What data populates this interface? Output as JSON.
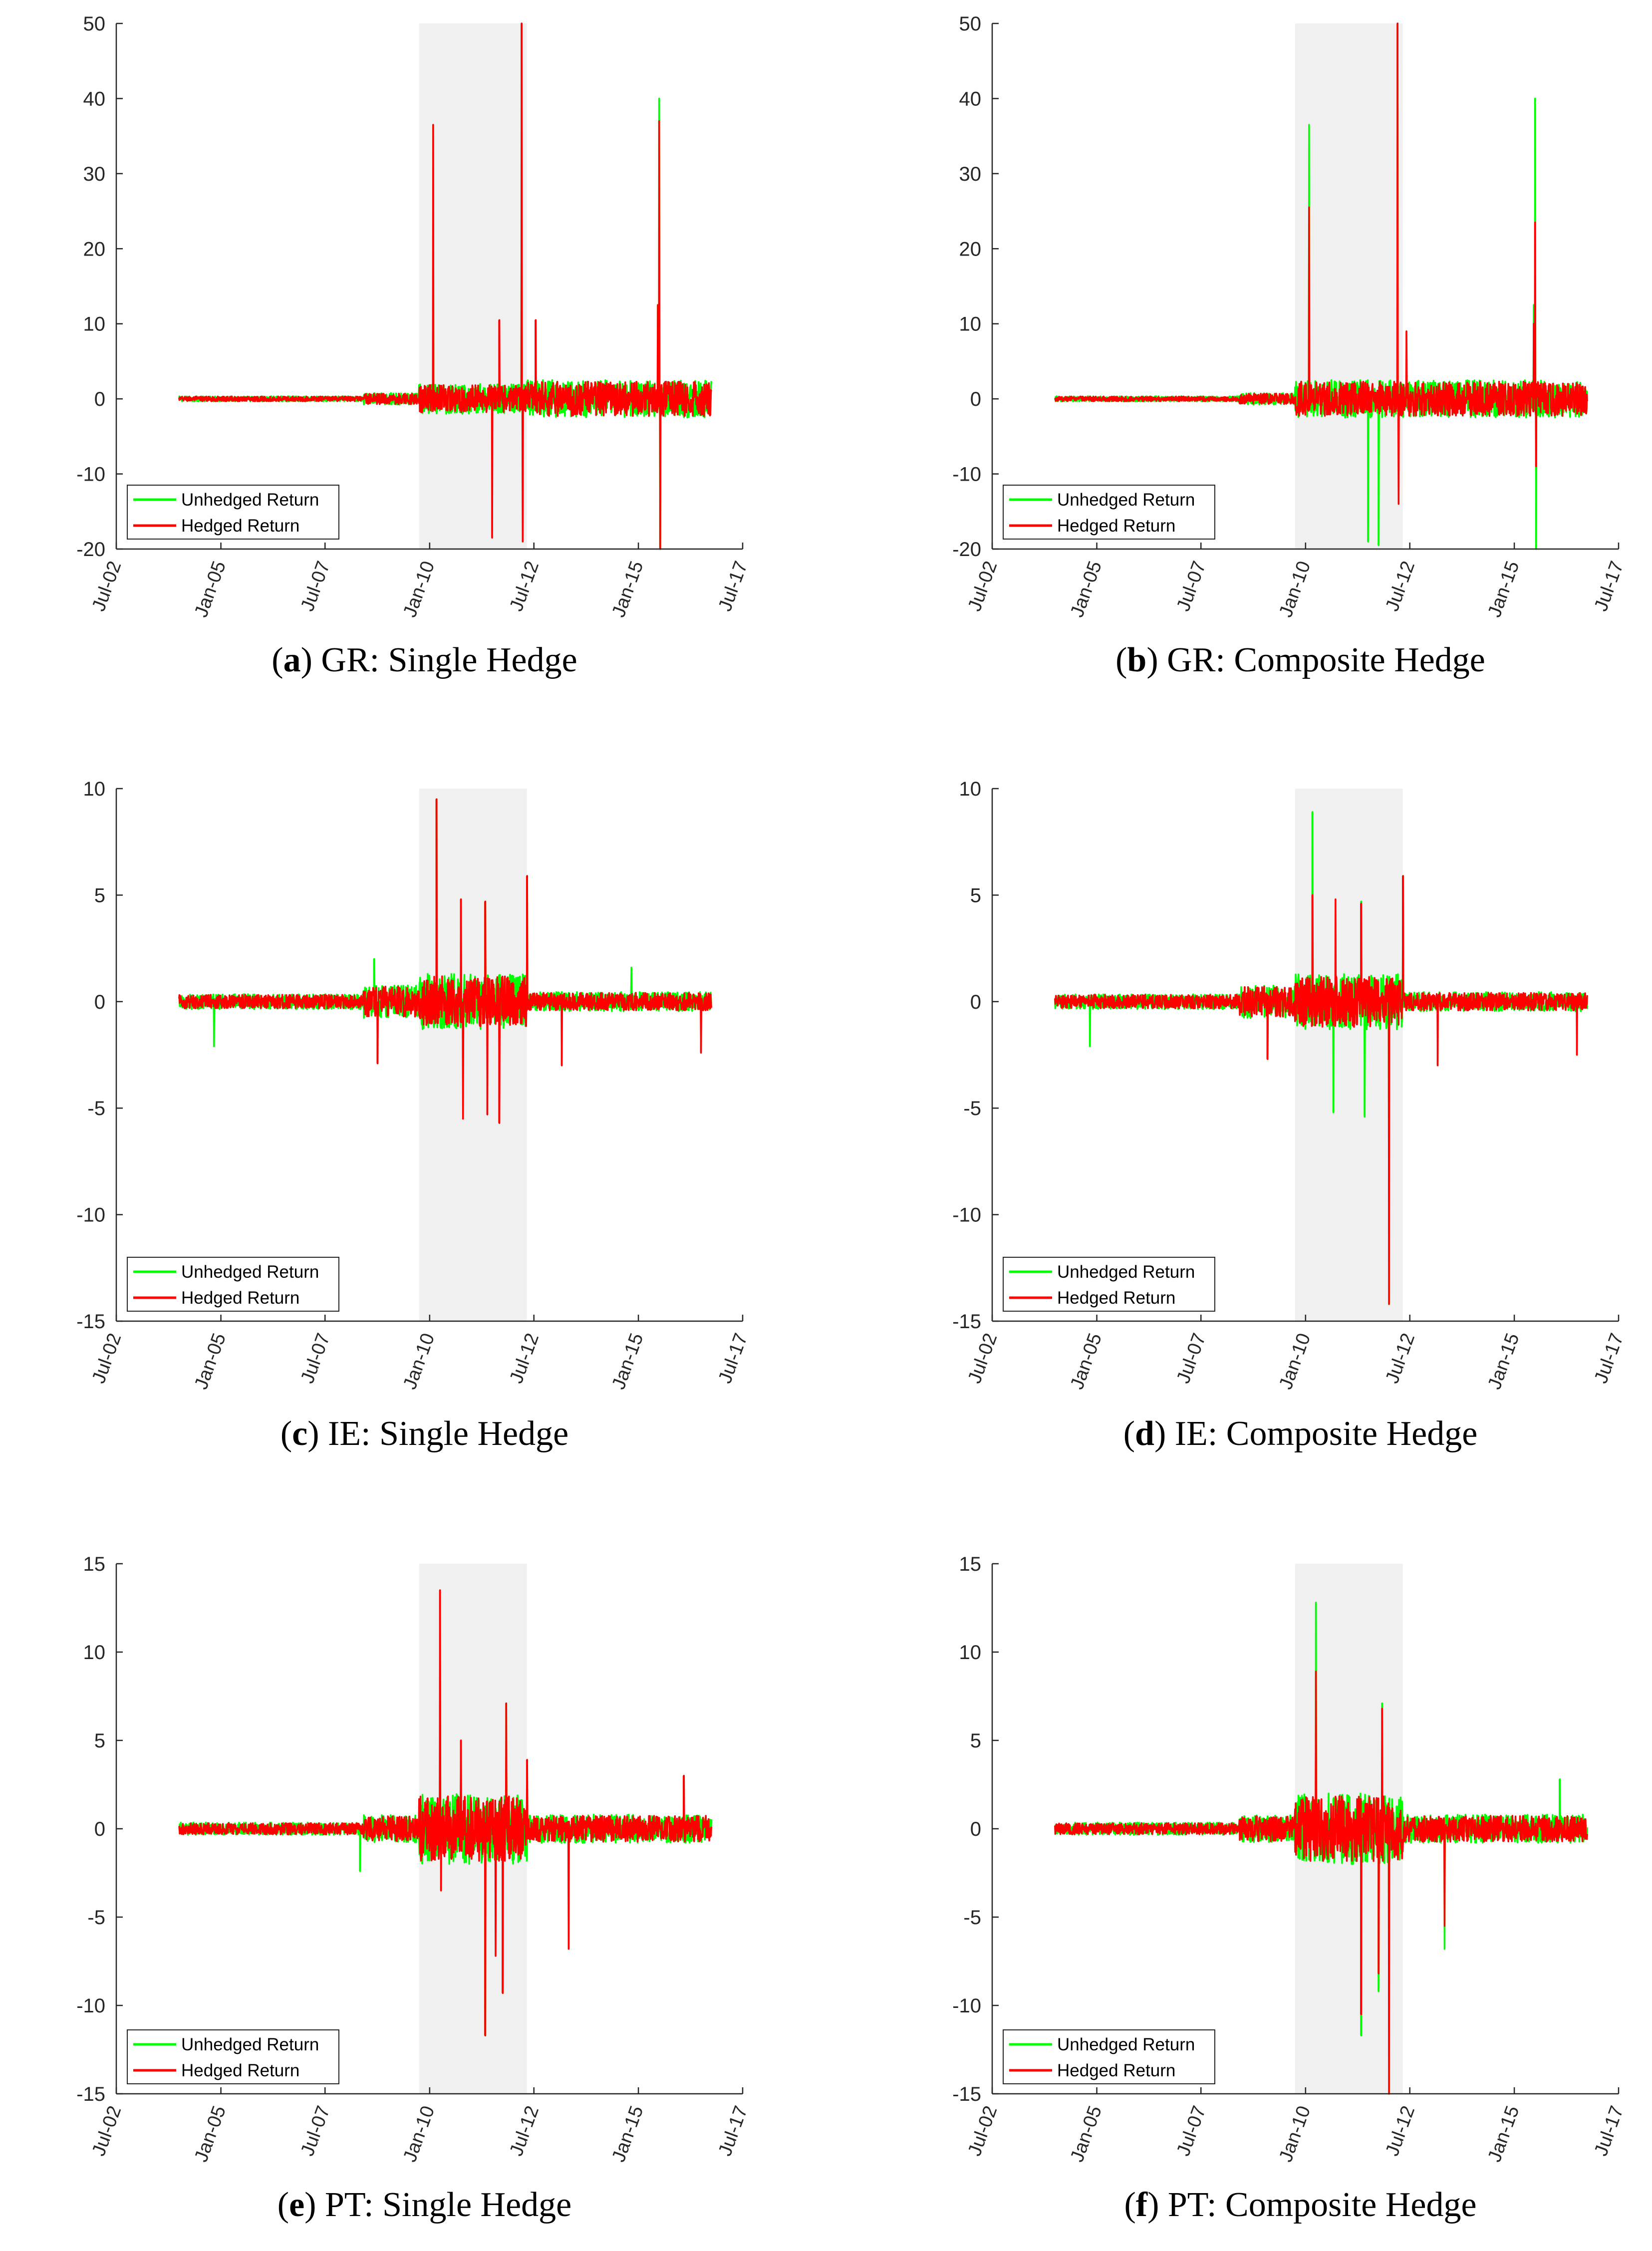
{
  "x_axis": {
    "tick_labels": [
      "Jul-02",
      "Jan-05",
      "Jul-07",
      "Jan-10",
      "Jul-12",
      "Jan-15",
      "Jul-17"
    ],
    "tick_dates": [
      "2002-07-01",
      "2005-01-01",
      "2007-07-01",
      "2010-01-01",
      "2012-07-01",
      "2015-01-01",
      "2017-07-01"
    ],
    "xlim": [
      "2002-07-01",
      "2017-07-01"
    ]
  },
  "data_range": {
    "start": "2004-01-01",
    "end": "2016-09-30"
  },
  "shaded_period": {
    "start": "2009-10-01",
    "end": "2012-05-01"
  },
  "colors": {
    "unhedged": "#00ff00",
    "hedged": "#ff0000",
    "shade": "#f0f0f0",
    "axis": "#262626"
  },
  "legend": {
    "unhedged_label": "Unhedged Return",
    "hedged_label": "Hedged Return",
    "placement": "bottom-left"
  },
  "chart_data": [
    {
      "type": "line",
      "panel_letter": "a",
      "caption": "GR: Single Hedge",
      "ylim": [
        -20,
        50
      ],
      "yticks": [
        -20,
        -10,
        0,
        10,
        20,
        30,
        40,
        50
      ],
      "grid": false,
      "noise": {
        "pre": 0.35,
        "mid": 2.0,
        "post": 2.5
      },
      "series": [
        {
          "name": "Unhedged Return",
          "spikes": [
            [
              "2010-02-01",
              36.5
            ],
            [
              "2012-03-15",
              50
            ],
            [
              "2012-03-25",
              -19
            ],
            [
              "2015-07-01",
              40
            ],
            [
              "2015-06-20",
              12.5
            ],
            [
              "2015-07-10",
              -20
            ]
          ]
        },
        {
          "name": "Hedged Return",
          "spikes": [
            [
              "2010-02-01",
              36.5
            ],
            [
              "2012-03-15",
              50
            ],
            [
              "2012-03-25",
              -19
            ],
            [
              "2011-09-01",
              10.5
            ],
            [
              "2011-07-01",
              -18.5
            ],
            [
              "2015-07-01",
              37
            ],
            [
              "2015-07-10",
              -20
            ],
            [
              "2015-06-20",
              12.5
            ],
            [
              "2012-07-15",
              10.5
            ]
          ]
        }
      ]
    },
    {
      "type": "line",
      "panel_letter": "b",
      "caption": "GR: Composite Hedge",
      "ylim": [
        -20,
        50
      ],
      "yticks": [
        -20,
        -10,
        0,
        10,
        20,
        30,
        40,
        50
      ],
      "grid": false,
      "noise": {
        "pre": 0.35,
        "mid": 2.5,
        "post": 2.5
      },
      "series": [
        {
          "name": "Unhedged Return",
          "spikes": [
            [
              "2010-02-01",
              36.5
            ],
            [
              "2012-03-15",
              50
            ],
            [
              "2011-07-01",
              -19
            ],
            [
              "2011-10-01",
              -19.5
            ],
            [
              "2015-07-01",
              40
            ],
            [
              "2015-07-10",
              -20
            ],
            [
              "2015-06-20",
              12.5
            ]
          ]
        },
        {
          "name": "Hedged Return",
          "spikes": [
            [
              "2010-02-01",
              25.5
            ],
            [
              "2012-03-15",
              50
            ],
            [
              "2012-03-25",
              -14
            ],
            [
              "2012-06-01",
              9
            ],
            [
              "2015-07-01",
              23.5
            ],
            [
              "2015-07-10",
              -9
            ],
            [
              "2015-06-20",
              10
            ]
          ]
        }
      ]
    },
    {
      "type": "line",
      "panel_letter": "c",
      "caption": "IE: Single Hedge",
      "ylim": [
        -15,
        10
      ],
      "yticks": [
        -15,
        -10,
        -5,
        0,
        5,
        10
      ],
      "grid": false,
      "noise": {
        "pre": 0.35,
        "mid": 1.3,
        "post": 0.45
      },
      "series": [
        {
          "name": "Unhedged Return",
          "spikes": [
            [
              "2004-11-01",
              -2.1
            ],
            [
              "2008-09-01",
              2
            ],
            [
              "2010-03-01",
              9.5
            ],
            [
              "2010-10-01",
              4.8
            ],
            [
              "2011-05-01",
              4.7
            ],
            [
              "2012-05-01",
              5.9
            ],
            [
              "2014-11-01",
              1.6
            ]
          ]
        },
        {
          "name": "Hedged Return",
          "spikes": [
            [
              "2010-03-01",
              9.5
            ],
            [
              "2010-10-01",
              4.8
            ],
            [
              "2010-10-20",
              -5.5
            ],
            [
              "2011-05-01",
              4.7
            ],
            [
              "2011-05-20",
              -5.3
            ],
            [
              "2011-09-01",
              -5.7
            ],
            [
              "2012-05-01",
              5.9
            ],
            [
              "2013-03-01",
              -3
            ],
            [
              "2016-07-01",
              -2.4
            ],
            [
              "2008-10-01",
              -2.9
            ]
          ]
        }
      ]
    },
    {
      "type": "line",
      "panel_letter": "d",
      "caption": "IE: Composite Hedge",
      "ylim": [
        -15,
        10
      ],
      "yticks": [
        -15,
        -10,
        -5,
        0,
        5,
        10
      ],
      "grid": false,
      "noise": {
        "pre": 0.35,
        "mid": 1.3,
        "post": 0.45
      },
      "series": [
        {
          "name": "Unhedged Return",
          "spikes": [
            [
              "2004-11-01",
              -2.1
            ],
            [
              "2010-03-01",
              8.9
            ],
            [
              "2010-09-01",
              -5.2
            ],
            [
              "2011-05-01",
              4.7
            ],
            [
              "2011-06-01",
              -5.4
            ],
            [
              "2012-05-01",
              5.9
            ],
            [
              "2012-01-01",
              -14.2
            ]
          ]
        },
        {
          "name": "Hedged Return",
          "spikes": [
            [
              "2010-03-01",
              5
            ],
            [
              "2010-09-20",
              4.8
            ],
            [
              "2011-05-01",
              4.6
            ],
            [
              "2012-05-01",
              5.9
            ],
            [
              "2012-01-01",
              -14.2
            ],
            [
              "2013-03-01",
              -3
            ],
            [
              "2016-07-01",
              -2.5
            ],
            [
              "2009-02-01",
              -2.7
            ]
          ]
        }
      ]
    },
    {
      "type": "line",
      "panel_letter": "e",
      "caption": "PT: Single Hedge",
      "ylim": [
        -15,
        15
      ],
      "yticks": [
        -15,
        -10,
        -5,
        0,
        5,
        10,
        15
      ],
      "grid": false,
      "noise": {
        "pre": 0.35,
        "mid": 2.0,
        "post": 0.8
      },
      "series": [
        {
          "name": "Unhedged Return",
          "spikes": [
            [
              "2008-05-01",
              -2.4
            ],
            [
              "2010-04-01",
              13.5
            ],
            [
              "2010-10-01",
              5
            ],
            [
              "2011-05-01",
              -11.7
            ],
            [
              "2011-11-01",
              7.1
            ],
            [
              "2011-10-01",
              -9.3
            ],
            [
              "2013-05-01",
              -6.8
            ],
            [
              "2016-02-01",
              3
            ]
          ]
        },
        {
          "name": "Hedged Return",
          "spikes": [
            [
              "2010-04-01",
              13.5
            ],
            [
              "2010-04-10",
              -3.5
            ],
            [
              "2010-10-01",
              5
            ],
            [
              "2011-05-01",
              -11.7
            ],
            [
              "2011-11-01",
              7.1
            ],
            [
              "2011-10-01",
              -9.3
            ],
            [
              "2011-08-01",
              -7.2
            ],
            [
              "2012-05-01",
              3.9
            ],
            [
              "2013-05-01",
              -6.8
            ],
            [
              "2016-02-01",
              3
            ]
          ]
        }
      ]
    },
    {
      "type": "line",
      "panel_letter": "f",
      "caption": "PT: Composite Hedge",
      "ylim": [
        -15,
        15
      ],
      "yticks": [
        -15,
        -10,
        -5,
        0,
        5,
        10,
        15
      ],
      "grid": false,
      "noise": {
        "pre": 0.35,
        "mid": 2.0,
        "post": 0.8
      },
      "series": [
        {
          "name": "Unhedged Return",
          "spikes": [
            [
              "2010-04-01",
              12.8
            ],
            [
              "2011-05-01",
              -11.7
            ],
            [
              "2011-11-01",
              7.1
            ],
            [
              "2011-10-01",
              -9.2
            ],
            [
              "2012-01-01",
              -15
            ],
            [
              "2013-05-01",
              -6.8
            ],
            [
              "2016-02-01",
              2.8
            ]
          ]
        },
        {
          "name": "Hedged Return",
          "spikes": [
            [
              "2010-04-01",
              8.9
            ],
            [
              "2011-11-01",
              6.8
            ],
            [
              "2011-10-01",
              -8.2
            ],
            [
              "2011-05-01",
              -10.5
            ],
            [
              "2012-01-01",
              -15
            ],
            [
              "2013-05-01",
              -5.5
            ]
          ]
        }
      ]
    }
  ]
}
